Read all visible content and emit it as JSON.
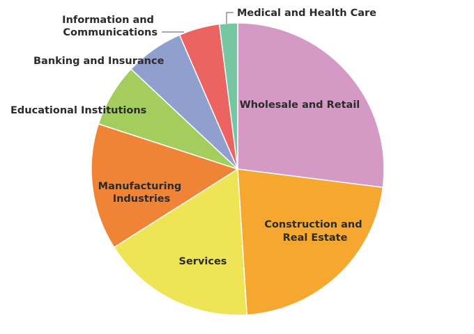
{
  "chart_data": {
    "type": "pie",
    "title": "",
    "series": [
      {
        "categories": [
          "Wholesale and Retail",
          "Construction and Real Estate",
          "Services",
          "Manufacturing Industries",
          "Educational Institutions",
          "Banking and Insurance",
          "Information and Communications",
          "Medical and Health Care"
        ],
        "values": [
          27.0,
          22.0,
          17.0,
          14.0,
          7.0,
          6.5,
          4.5,
          2.0
        ]
      }
    ],
    "labels": [
      {
        "lines": [
          "Wholesale and Retail"
        ]
      },
      {
        "lines": [
          "Construction and",
          "Real Estate"
        ]
      },
      {
        "lines": [
          "Services"
        ]
      },
      {
        "lines": [
          "Manufacturing",
          "Industries"
        ]
      },
      {
        "lines": [
          "Educational Institutions"
        ]
      },
      {
        "lines": [
          "Banking and Insurance"
        ]
      },
      {
        "lines": [
          "Information and",
          "Communications"
        ]
      },
      {
        "lines": [
          "Medical and Health Care"
        ]
      }
    ],
    "colors": [
      "#d49ac5",
      "#f5a72f",
      "#efe455",
      "#ef8336",
      "#a3cd5d",
      "#8fa0cf",
      "#ec6461",
      "#76c7a1"
    ],
    "start": "12 o'clock",
    "direction": "clockwise",
    "legend": "none (labels on and beside slices)"
  }
}
